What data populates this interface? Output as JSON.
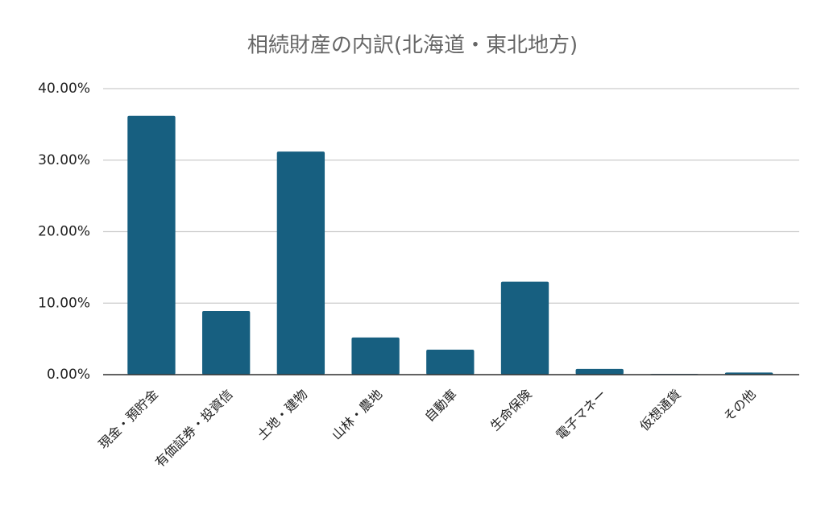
{
  "chart_data": {
    "type": "bar",
    "title": "相続財産の内訳(北海道・東北地方)",
    "categories": [
      "現金・預貯金",
      "有価証券・投資信",
      "土地・建物",
      "山林・農地",
      "自動車",
      "生命保険",
      "電子マネー",
      "仮想通貨",
      "その他"
    ],
    "values": [
      36.2,
      8.9,
      31.2,
      5.2,
      3.5,
      13.0,
      0.8,
      0.1,
      0.3
    ],
    "color": "#175f80",
    "ylim": [
      0,
      40
    ],
    "yticks": [
      {
        "value": 0,
        "label": "0.00%"
      },
      {
        "value": 10,
        "label": "10.00%"
      },
      {
        "value": 20,
        "label": "20.00%"
      },
      {
        "value": 30,
        "label": "30.00%"
      },
      {
        "value": 40,
        "label": "40.00%"
      }
    ],
    "grid": true
  }
}
